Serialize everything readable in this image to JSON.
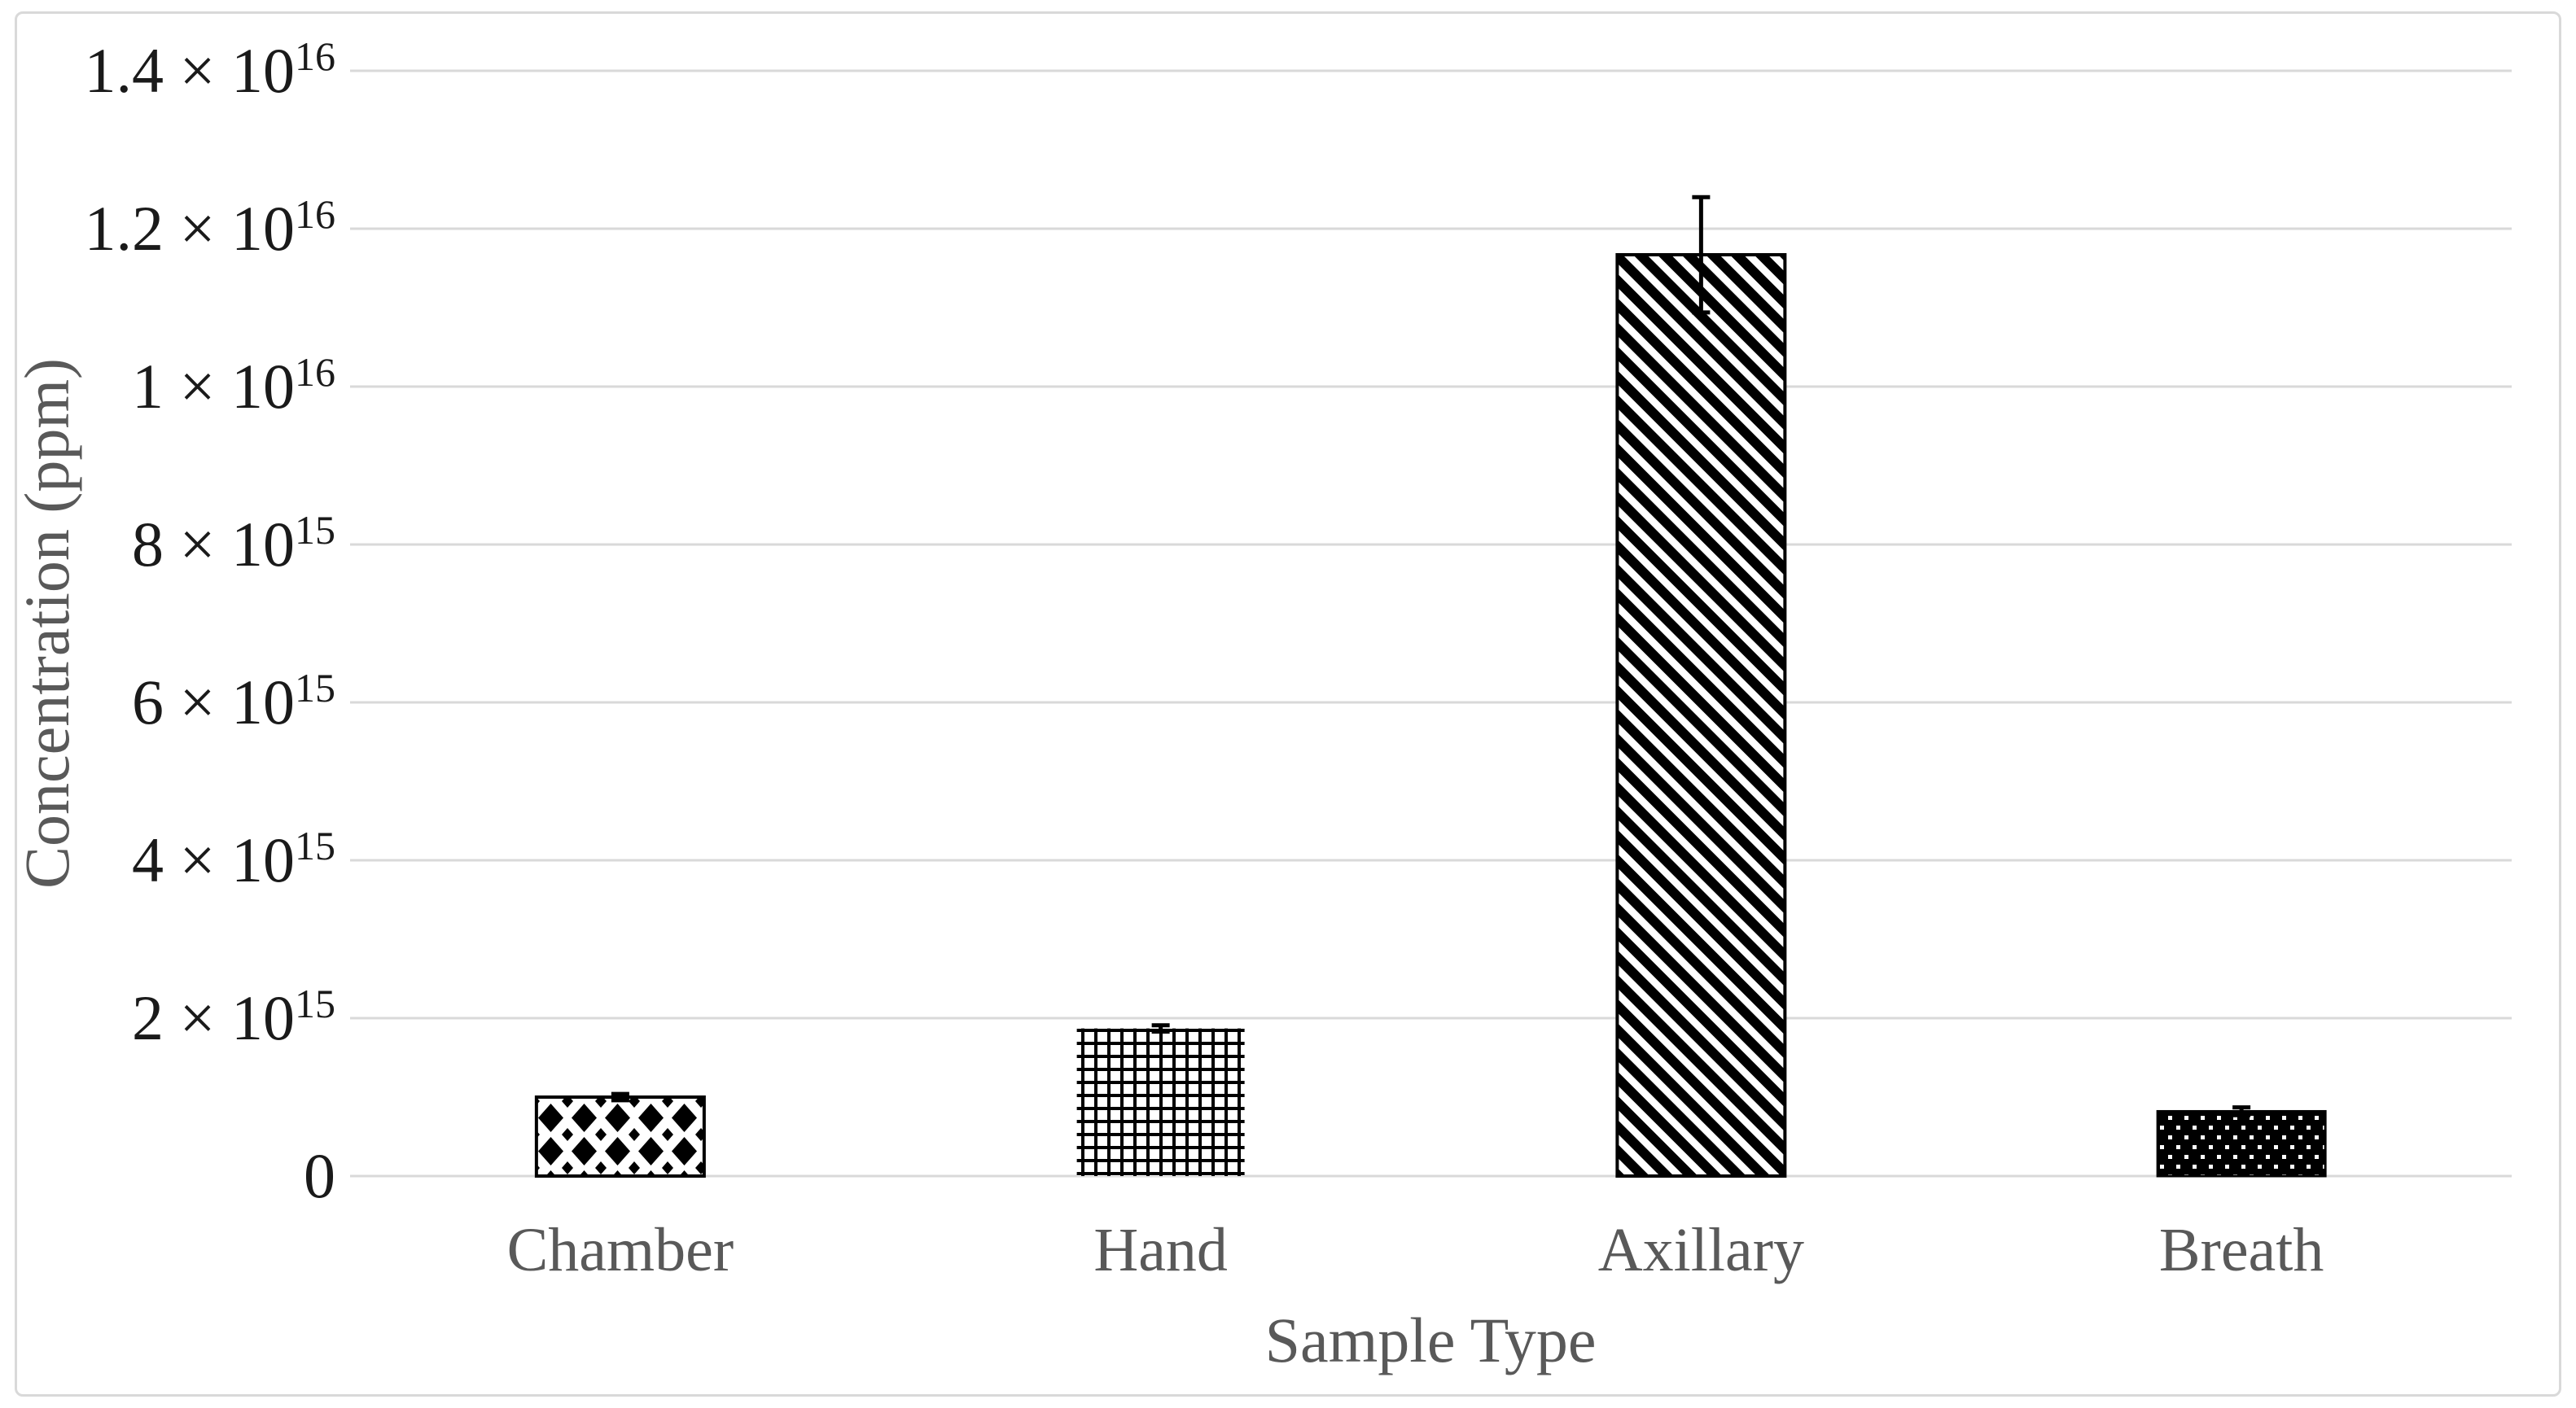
{
  "figure": {
    "background": "#ffffff",
    "border_color": "#d9d9d9"
  },
  "chart_data": {
    "type": "bar",
    "title": "",
    "xlabel": "Sample Type",
    "ylabel": "Concentration (ppm)",
    "categories": [
      "Chamber",
      "Hand",
      "Axillary",
      "Breath"
    ],
    "values": [
      1000000000000000.0,
      1870000000000000.0,
      1.167e+16,
      820000000000000.0
    ],
    "errors": [
      40000000000000.0,
      40000000000000.0,
      730000000000000.0,
      50000000000000.0
    ],
    "ylim": [
      0,
      1.4e+16
    ],
    "ytick_step": 2000000000000000.0,
    "grid": true,
    "legend": "none",
    "y_ticks": [
      {
        "value": 1.4e+16,
        "base": "1.4 × 10",
        "exp": "16"
      },
      {
        "value": 1.2e+16,
        "base": "1.2 × 10",
        "exp": "16"
      },
      {
        "value": 1e+16,
        "base": "1 × 10",
        "exp": "16"
      },
      {
        "value": 8000000000000000.0,
        "base": "8 × 10",
        "exp": "15"
      },
      {
        "value": 6000000000000000.0,
        "base": "6 × 10",
        "exp": "15"
      },
      {
        "value": 4000000000000000.0,
        "base": "4 × 10",
        "exp": "15"
      },
      {
        "value": 2000000000000000.0,
        "base": "2 × 10",
        "exp": "15"
      },
      {
        "value": 0,
        "base": "0",
        "exp": ""
      }
    ],
    "bar_patterns": [
      "black diamond lattice on white",
      "small black grid on white",
      "black diagonal stripes on white",
      "white dots on black"
    ],
    "colors": {
      "bar_ink": "#000000",
      "gridline": "#d9d9d9",
      "tick_text": "#1a1a1a",
      "label_text": "#595959",
      "error_bar": "#000000"
    }
  }
}
